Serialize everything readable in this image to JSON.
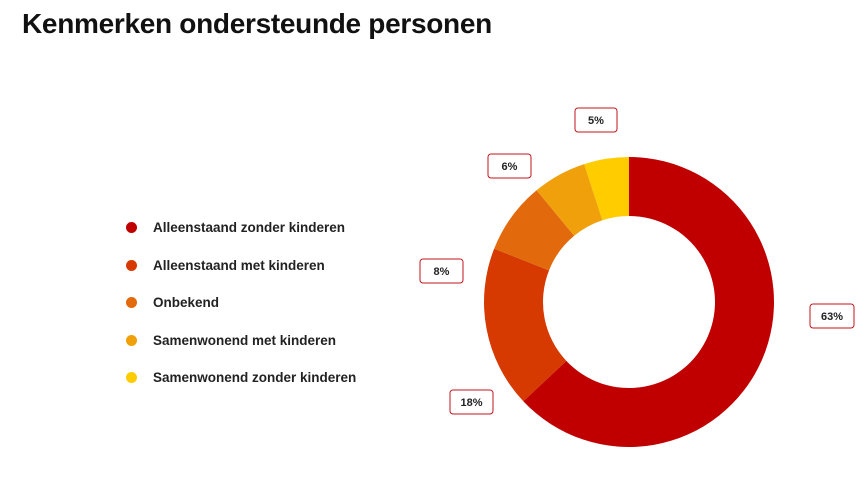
{
  "page": {
    "title": "Kenmerken ondersteunde personen"
  },
  "chart_data": {
    "type": "pie",
    "variant": "donut",
    "title": "",
    "legend_position": "left",
    "slices": [
      {
        "label": "Alleenstaand zonder kinderen",
        "value": 63,
        "display": "63%",
        "color": "#c00000"
      },
      {
        "label": "Alleenstaand met kinderen",
        "value": 18,
        "display": "18%",
        "color": "#d63a00"
      },
      {
        "label": "Onbekend",
        "value": 8,
        "display": "8%",
        "color": "#e2690c"
      },
      {
        "label": "Samenwonend met kinderen",
        "value": 6,
        "display": "6%",
        "color": "#f0a00a"
      },
      {
        "label": "Samenwonend zonder kinderen",
        "value": 5,
        "display": "5%",
        "color": "#ffcc00"
      }
    ]
  },
  "colors": {
    "label_border": "#c0151d"
  }
}
